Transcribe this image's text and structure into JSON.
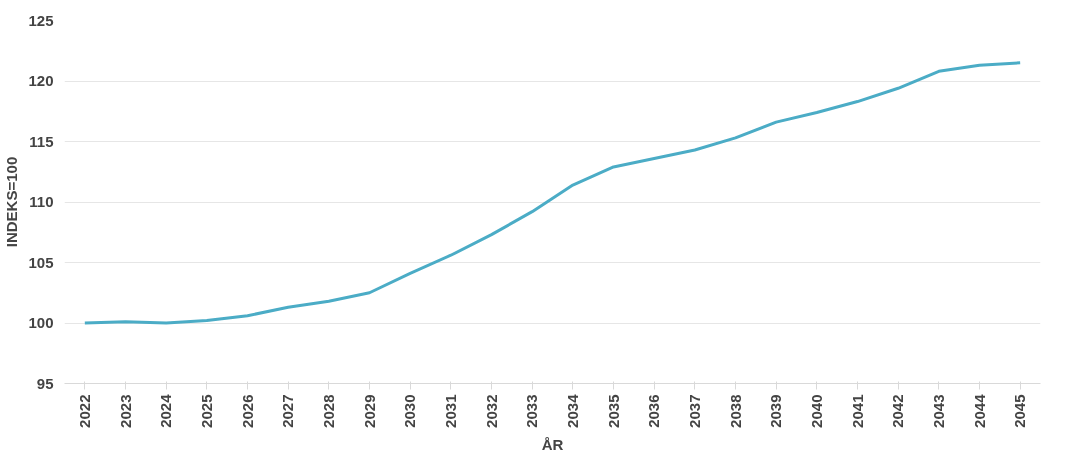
{
  "chart_data": {
    "type": "line",
    "xlabel": "ÅR",
    "ylabel": "INDEKS=100",
    "categories": [
      "2022",
      "2023",
      "2024",
      "2025",
      "2026",
      "2027",
      "2028",
      "2029",
      "2030",
      "2031",
      "2032",
      "2033",
      "2034",
      "2035",
      "2036",
      "2037",
      "2038",
      "2039",
      "2040",
      "2041",
      "2042",
      "2043",
      "2044",
      "2045"
    ],
    "series": [
      {
        "color": "#4bacc6",
        "values": [
          100.0,
          100.1,
          100.0,
          100.2,
          100.6,
          101.3,
          101.8,
          102.5,
          104.1,
          105.6,
          107.3,
          109.2,
          111.4,
          112.9,
          113.6,
          114.3,
          115.3,
          116.6,
          117.4,
          118.3,
          119.4,
          120.8,
          121.3,
          121.5
        ]
      }
    ],
    "ylim": [
      95,
      125
    ],
    "yticks": [
      95,
      100,
      105,
      110,
      115,
      120,
      125
    ],
    "grid": "y",
    "marker": "none",
    "line_style": "solid"
  }
}
